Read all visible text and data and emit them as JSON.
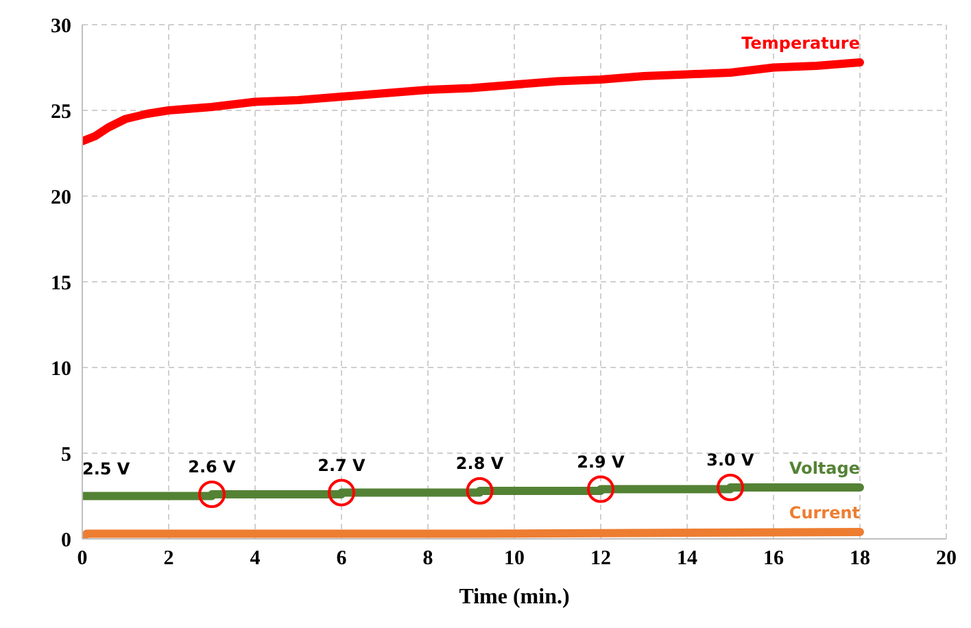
{
  "chart_data": {
    "type": "line",
    "xlabel": "Time (min.)",
    "xlim": [
      0,
      20
    ],
    "xticks": [
      0,
      2,
      4,
      6,
      8,
      10,
      12,
      14,
      16,
      18,
      20
    ],
    "ylim": [
      0,
      30
    ],
    "yticks": [
      0,
      5,
      10,
      15,
      20,
      25,
      30
    ],
    "grid": true,
    "legend": false,
    "line_style": "solid",
    "series": [
      {
        "name": "Temperature",
        "color": "#ff0000",
        "x": [
          0,
          0.3,
          0.6,
          1,
          1.5,
          2,
          3,
          4,
          5,
          6,
          7,
          8,
          9,
          10,
          11,
          12,
          13,
          14,
          15,
          16,
          17,
          18
        ],
        "values": [
          23.2,
          23.5,
          24.0,
          24.5,
          24.8,
          25.0,
          25.2,
          25.5,
          25.6,
          25.8,
          26.0,
          26.2,
          26.3,
          26.5,
          26.7,
          26.8,
          27.0,
          27.1,
          27.2,
          27.5,
          27.6,
          27.8
        ]
      },
      {
        "name": "Voltage",
        "color": "#548235",
        "type": "step",
        "x": [
          0,
          3,
          6,
          9.2,
          12,
          15,
          18
        ],
        "values": [
          2.5,
          2.6,
          2.7,
          2.8,
          2.9,
          3.0,
          3.0
        ]
      },
      {
        "name": "Current",
        "color": "#ed7d31",
        "x": [
          0,
          0.1,
          9,
          18
        ],
        "values": [
          0,
          0.3,
          0.3,
          0.4
        ]
      }
    ],
    "annotations": [
      {
        "text": "2.5 V",
        "x": 0,
        "y": 2.5
      },
      {
        "text": "2.6 V",
        "x": 3,
        "y": 2.6
      },
      {
        "text": "2.7 V",
        "x": 6,
        "y": 2.7
      },
      {
        "text": "2.8 V",
        "x": 9.2,
        "y": 2.8
      },
      {
        "text": "2.9 V",
        "x": 12,
        "y": 2.9
      },
      {
        "text": "3.0 V",
        "x": 15,
        "y": 3.0
      }
    ]
  }
}
